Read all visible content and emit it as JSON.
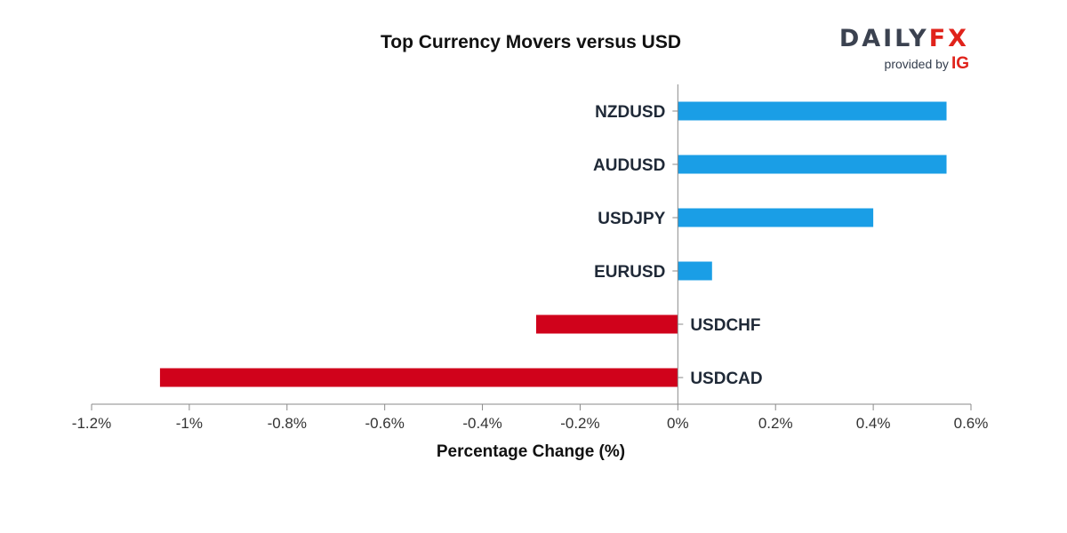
{
  "brand": {
    "name_part1": "DAILY",
    "name_part2": "FX",
    "provided_by": "provided by",
    "partner": "IG"
  },
  "colors": {
    "positive": "#1a9ee6",
    "negative": "#d0021b",
    "text": "#1f2937",
    "axis": "#8a8a8a"
  },
  "chart_data": {
    "type": "bar",
    "orientation": "horizontal",
    "title": "Top Currency Movers versus USD",
    "xlabel": "Percentage Change (%)",
    "ylabel": "",
    "xlim": [
      -1.2,
      0.6
    ],
    "xticks": [
      -1.2,
      -1.0,
      -0.8,
      -0.6,
      -0.4,
      -0.2,
      0,
      0.2,
      0.4,
      0.6
    ],
    "xtick_labels": [
      "-1.2%",
      "-1%",
      "-0.8%",
      "-0.6%",
      "-0.4%",
      "-0.2%",
      "0%",
      "0.2%",
      "0.4%",
      "0.6%"
    ],
    "categories": [
      "NZDUSD",
      "AUDUSD",
      "USDJPY",
      "EURUSD",
      "USDCHF",
      "USDCAD"
    ],
    "values": [
      0.55,
      0.55,
      0.4,
      0.07,
      -0.29,
      -1.06
    ],
    "grid": false,
    "legend": "none"
  }
}
